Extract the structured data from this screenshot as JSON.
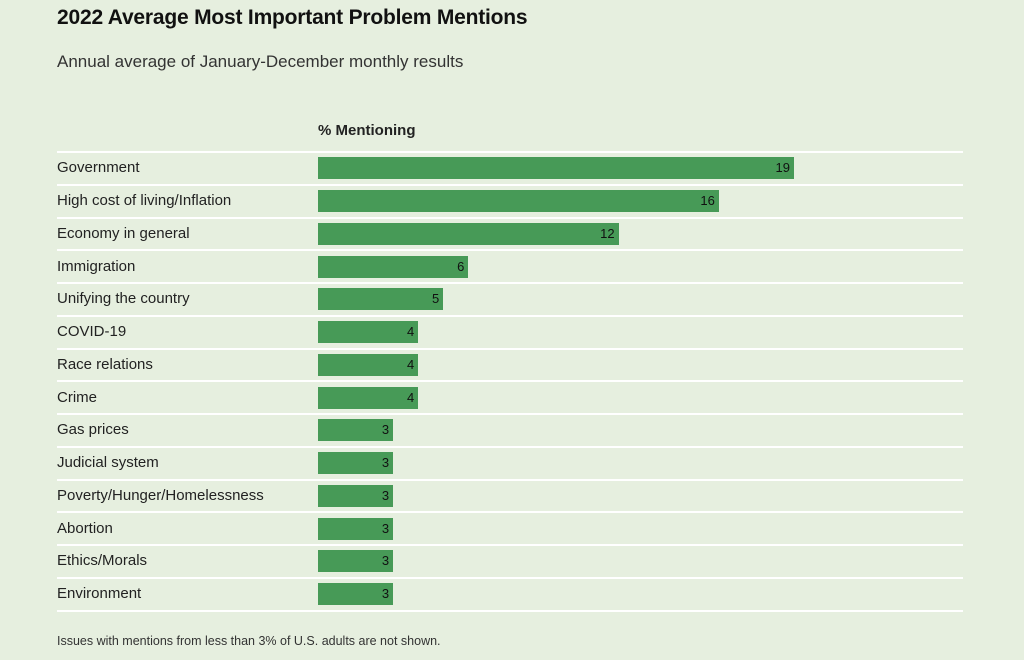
{
  "title": "2022 Average Most Important Problem Mentions",
  "subtitle": "Annual average of January-December monthly results",
  "column_header": "% Mentioning",
  "note": "Issues with mentions from less than 3% of U.S. adults are not shown.",
  "colors": {
    "bar": "#479a57",
    "background": "#e6efdf",
    "row_line": "#ffffff"
  },
  "chart_data": {
    "type": "bar",
    "orientation": "horizontal",
    "title": "2022 Average Most Important Problem Mentions",
    "subtitle": "Annual average of January-December monthly results",
    "value_label": "% Mentioning",
    "xlim": [
      0,
      19
    ],
    "grid": false,
    "categories": [
      "Government",
      "High cost of living/Inflation",
      "Economy in general",
      "Immigration",
      "Unifying the country",
      "COVID-19",
      "Race relations",
      "Crime",
      "Gas prices",
      "Judicial system",
      "Poverty/Hunger/Homelessness",
      "Abortion",
      "Ethics/Morals",
      "Environment"
    ],
    "values": [
      19,
      16,
      12,
      6,
      5,
      4,
      4,
      4,
      3,
      3,
      3,
      3,
      3,
      3
    ]
  }
}
